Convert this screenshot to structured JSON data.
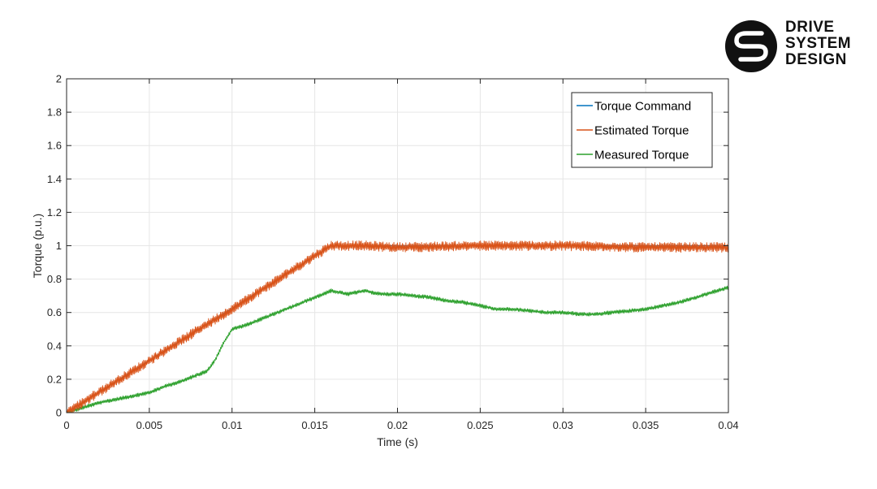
{
  "logo": {
    "lines": [
      "DRIVE",
      "SYSTEM",
      "DESIGN"
    ],
    "icon": "drive-system-design-logo-icon"
  },
  "chart_data": {
    "type": "line",
    "title": "",
    "xlabel": "Time (s)",
    "ylabel": "Torque (p.u.)",
    "xlim": [
      0,
      0.04
    ],
    "ylim": [
      0,
      2
    ],
    "x_ticks": [
      0,
      0.005,
      0.01,
      0.015,
      0.02,
      0.025,
      0.03,
      0.035,
      0.04
    ],
    "x_tick_labels": [
      "0",
      "0.005",
      "0.01",
      "0.015",
      "0.02",
      "0.025",
      "0.03",
      "0.035",
      "0.04"
    ],
    "y_ticks": [
      0,
      0.2,
      0.4,
      0.6,
      0.8,
      1,
      1.2,
      1.4,
      1.6,
      1.8,
      2
    ],
    "y_tick_labels": [
      "0",
      "0.2",
      "0.4",
      "0.6",
      "0.8",
      "1",
      "1.2",
      "1.4",
      "1.6",
      "1.8",
      "2"
    ],
    "grid": true,
    "legend_position": "top-right",
    "series": [
      {
        "name": "Torque Command",
        "color": "#0072BD",
        "noise": 0,
        "x": [
          0,
          0.016,
          0.04
        ],
        "y": [
          0,
          1.0,
          1.0
        ]
      },
      {
        "name": "Estimated Torque",
        "color": "#D95319",
        "noise": 0.03,
        "x": [
          0,
          0.005,
          0.008,
          0.01,
          0.0125,
          0.015,
          0.016,
          0.018,
          0.02,
          0.025,
          0.03,
          0.035,
          0.04
        ],
        "y": [
          0,
          0.31,
          0.5,
          0.62,
          0.78,
          0.94,
          1.0,
          1.0,
          0.99,
          1.0,
          1.0,
          0.99,
          0.99
        ]
      },
      {
        "name": "Measured Torque",
        "color": "#2CA02C",
        "noise": 0.012,
        "x": [
          0,
          0.001,
          0.002,
          0.003,
          0.004,
          0.005,
          0.006,
          0.007,
          0.008,
          0.0085,
          0.009,
          0.0095,
          0.01,
          0.011,
          0.012,
          0.013,
          0.014,
          0.015,
          0.016,
          0.017,
          0.018,
          0.019,
          0.02,
          0.021,
          0.022,
          0.023,
          0.024,
          0.025,
          0.026,
          0.027,
          0.028,
          0.029,
          0.03,
          0.031,
          0.032,
          0.033,
          0.034,
          0.035,
          0.036,
          0.037,
          0.038,
          0.039,
          0.04
        ],
        "y": [
          0,
          0.03,
          0.06,
          0.08,
          0.1,
          0.12,
          0.16,
          0.19,
          0.23,
          0.25,
          0.32,
          0.42,
          0.5,
          0.53,
          0.57,
          0.61,
          0.65,
          0.69,
          0.73,
          0.71,
          0.73,
          0.71,
          0.71,
          0.7,
          0.69,
          0.67,
          0.66,
          0.64,
          0.62,
          0.62,
          0.61,
          0.6,
          0.6,
          0.59,
          0.59,
          0.6,
          0.61,
          0.62,
          0.64,
          0.66,
          0.69,
          0.72,
          0.75
        ]
      }
    ]
  }
}
